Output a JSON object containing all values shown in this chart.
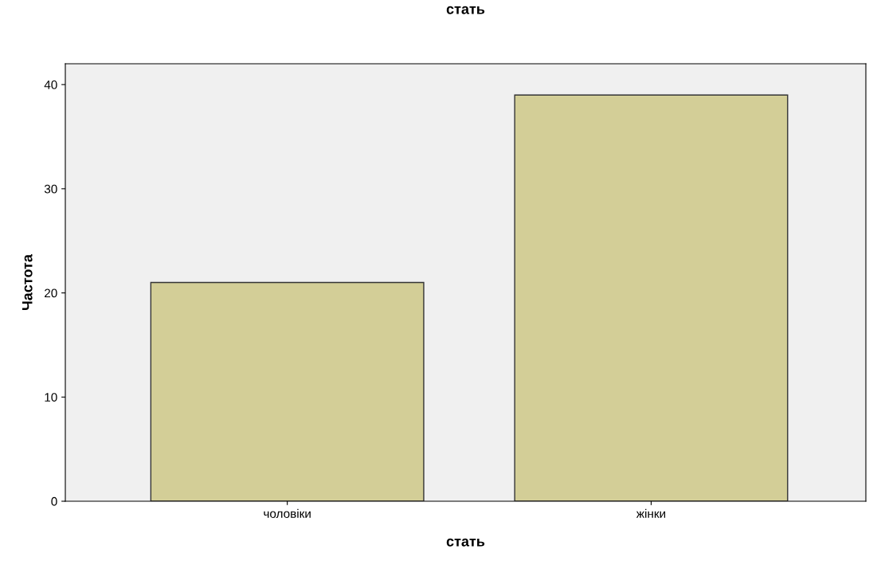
{
  "chart_data": {
    "type": "bar",
    "title": "стать",
    "xlabel": "стать",
    "ylabel": "Частота",
    "categories": [
      "чоловіки",
      "жінки"
    ],
    "values": [
      21,
      39
    ],
    "color": "#d3ce97",
    "ylim": [
      0,
      42
    ],
    "yticks": [
      0,
      10,
      20,
      30,
      40
    ],
    "grid": false,
    "legend": false
  }
}
